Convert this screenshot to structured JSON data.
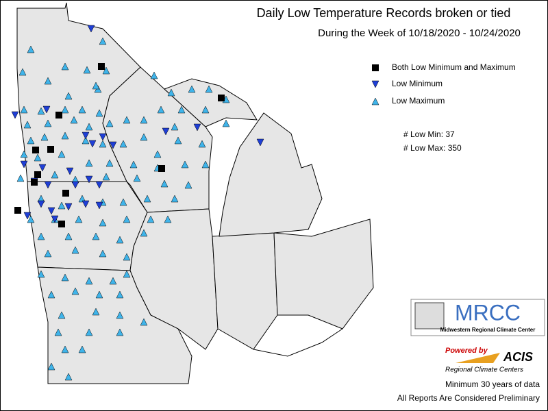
{
  "header": {
    "title": "Daily Low Temperature Records broken or tied",
    "subtitle": "During the Week of 10/18/2020 - 10/24/2020"
  },
  "legend": {
    "items": [
      "Both Low Minimum and Maximum",
      "Low Minimum",
      "Low Maximum"
    ]
  },
  "counts": [
    "# Low Min: 37",
    "# Low Max: 350"
  ],
  "logos": {
    "mrcc": "MRCC",
    "mrcc_name": "Midwestern Regional Climate Center",
    "powered": "Powered by",
    "acis": "ACIS",
    "rcc": "Regional Climate Centers"
  },
  "footer": [
    "Minimum 30 years of data",
    "All Reports Are Considered Preliminary"
  ]
}
